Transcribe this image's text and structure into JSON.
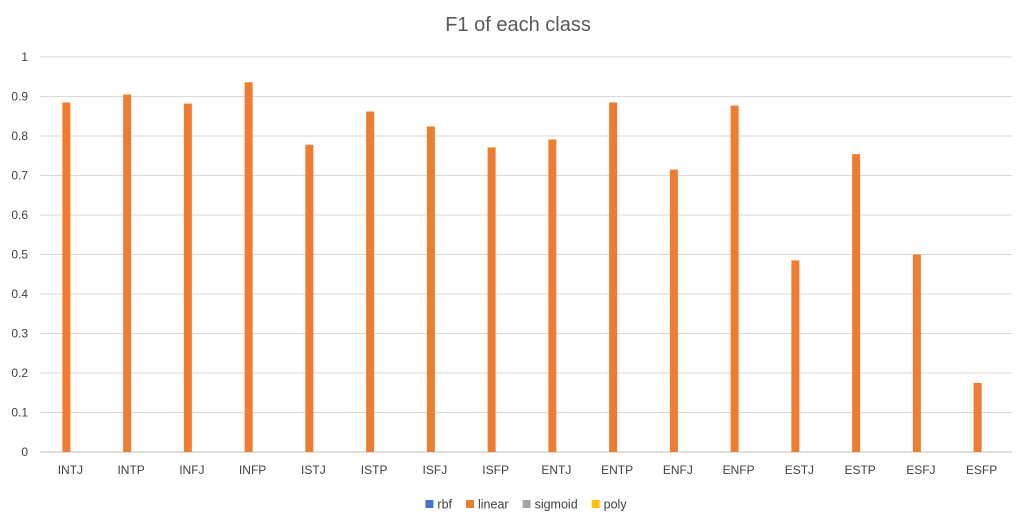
{
  "chart_data": {
    "type": "bar",
    "title": "F1 of each class",
    "xlabel": "",
    "ylabel": "",
    "ylim": [
      0,
      1
    ],
    "yticks": [
      "0",
      "0.1",
      "0.2",
      "0.3",
      "0.4",
      "0.5",
      "0.6",
      "0.7",
      "0.8",
      "0.9",
      "1"
    ],
    "categories": [
      "INTJ",
      "INTP",
      "INFJ",
      "INFP",
      "ISTJ",
      "ISTP",
      "ISFJ",
      "ISFP",
      "ENTJ",
      "ENTP",
      "ENFJ",
      "ENFP",
      "ESTJ",
      "ESTP",
      "ESFJ",
      "ESFP"
    ],
    "series": [
      {
        "name": "rbf",
        "color": "#4472C4",
        "values": [
          null,
          null,
          null,
          null,
          null,
          null,
          null,
          null,
          null,
          null,
          null,
          null,
          null,
          null,
          null,
          null
        ]
      },
      {
        "name": "linear",
        "color": "#ED7D31",
        "values": [
          0.885,
          0.905,
          0.882,
          0.936,
          0.778,
          0.862,
          0.824,
          0.771,
          0.791,
          0.885,
          0.715,
          0.877,
          0.485,
          0.754,
          0.5,
          0.175
        ]
      },
      {
        "name": "sigmoid",
        "color": "#A5A5A5",
        "values": [
          null,
          null,
          null,
          null,
          null,
          null,
          null,
          null,
          null,
          null,
          null,
          null,
          null,
          null,
          null,
          null
        ]
      },
      {
        "name": "poly",
        "color": "#FFC000",
        "values": [
          null,
          null,
          null,
          null,
          null,
          null,
          null,
          null,
          null,
          null,
          null,
          null,
          null,
          null,
          null,
          null
        ]
      }
    ],
    "grid": true,
    "legend_position": "bottom"
  }
}
